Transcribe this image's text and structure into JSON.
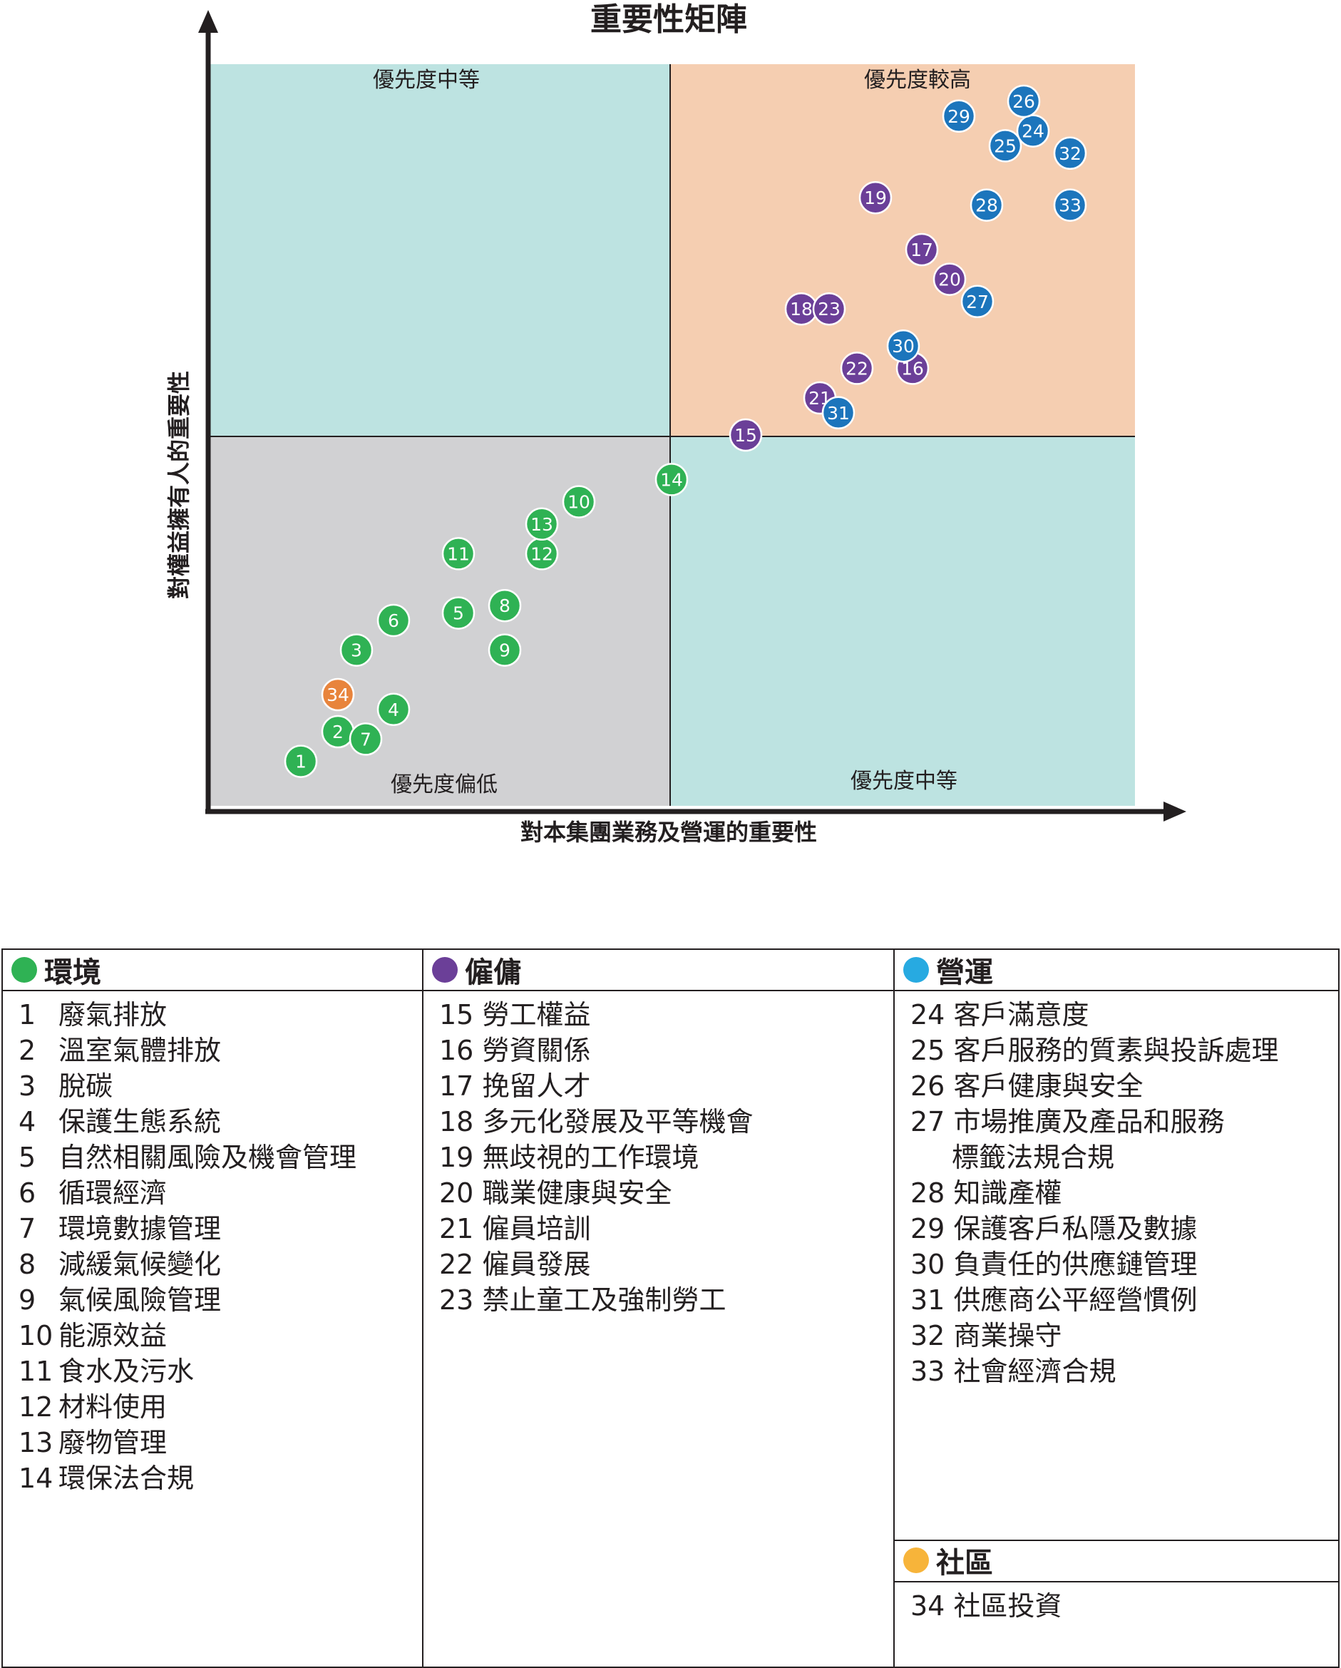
{
  "chart_data": {
    "type": "scatter",
    "title": "重要性矩陣",
    "xlabel": "對本集團業務及營運的重要性",
    "ylabel": "對權益擁有人的重要性",
    "xlim": [
      0,
      100
    ],
    "ylim": [
      0,
      100
    ],
    "quadrants": {
      "top_left": {
        "label": "優先度中等",
        "color": "#bde3e1"
      },
      "top_right": {
        "label": "優先度較高",
        "color": "#f5ceb1"
      },
      "bottom_left": {
        "label": "優先度偏低",
        "color": "#d1d1d3"
      },
      "bottom_right": {
        "label": "優先度中等",
        "color": "#bde3e1"
      }
    },
    "colors": {
      "環境": "#2fb254",
      "僱傭": "#6b3f98",
      "營運": "#1c75bc",
      "社區": "#e8843c"
    },
    "points": [
      {
        "id": "1",
        "category": "環境",
        "x": 10,
        "y": 6
      },
      {
        "id": "2",
        "category": "環境",
        "x": 14,
        "y": 10
      },
      {
        "id": "3",
        "category": "環境",
        "x": 16,
        "y": 21
      },
      {
        "id": "4",
        "category": "環境",
        "x": 20,
        "y": 13
      },
      {
        "id": "5",
        "category": "環境",
        "x": 27,
        "y": 26
      },
      {
        "id": "6",
        "category": "環境",
        "x": 20,
        "y": 25
      },
      {
        "id": "7",
        "category": "環境",
        "x": 17,
        "y": 9
      },
      {
        "id": "8",
        "category": "環境",
        "x": 32,
        "y": 27
      },
      {
        "id": "9",
        "category": "環境",
        "x": 32,
        "y": 21
      },
      {
        "id": "10",
        "category": "環境",
        "x": 40,
        "y": 41
      },
      {
        "id": "11",
        "category": "環境",
        "x": 27,
        "y": 34
      },
      {
        "id": "12",
        "category": "環境",
        "x": 36,
        "y": 34
      },
      {
        "id": "13",
        "category": "環境",
        "x": 36,
        "y": 38
      },
      {
        "id": "14",
        "category": "環境",
        "x": 50,
        "y": 44
      },
      {
        "id": "15",
        "category": "僱傭",
        "x": 58,
        "y": 50
      },
      {
        "id": "16",
        "category": "僱傭",
        "x": 76,
        "y": 59
      },
      {
        "id": "17",
        "category": "僱傭",
        "x": 77,
        "y": 75
      },
      {
        "id": "18",
        "category": "僱傭",
        "x": 64,
        "y": 67
      },
      {
        "id": "19",
        "category": "僱傭",
        "x": 72,
        "y": 82
      },
      {
        "id": "20",
        "category": "僱傭",
        "x": 80,
        "y": 71
      },
      {
        "id": "21",
        "category": "僱傭",
        "x": 66,
        "y": 55
      },
      {
        "id": "22",
        "category": "僱傭",
        "x": 70,
        "y": 59
      },
      {
        "id": "23",
        "category": "僱傭",
        "x": 67,
        "y": 67
      },
      {
        "id": "24",
        "category": "營運",
        "x": 89,
        "y": 91
      },
      {
        "id": "25",
        "category": "營運",
        "x": 86,
        "y": 89
      },
      {
        "id": "26",
        "category": "營運",
        "x": 88,
        "y": 95
      },
      {
        "id": "27",
        "category": "營運",
        "x": 83,
        "y": 68
      },
      {
        "id": "28",
        "category": "營運",
        "x": 84,
        "y": 81
      },
      {
        "id": "29",
        "category": "營運",
        "x": 81,
        "y": 93
      },
      {
        "id": "30",
        "category": "營運",
        "x": 75,
        "y": 62
      },
      {
        "id": "31",
        "category": "營運",
        "x": 68,
        "y": 53
      },
      {
        "id": "32",
        "category": "營運",
        "x": 93,
        "y": 88
      },
      {
        "id": "33",
        "category": "營運",
        "x": 93,
        "y": 81
      },
      {
        "id": "34",
        "category": "社區",
        "x": 14,
        "y": 15
      }
    ]
  },
  "legend": {
    "environment": {
      "title": "環境",
      "color": "#2fb254",
      "items": [
        {
          "num": "1",
          "text": "廢氣排放"
        },
        {
          "num": "2",
          "text": "溫室氣體排放"
        },
        {
          "num": "3",
          "text": "脫碳"
        },
        {
          "num": "4",
          "text": "保護生態系統"
        },
        {
          "num": "5",
          "text": "自然相關風險及機會管理"
        },
        {
          "num": "6",
          "text": "循環經濟"
        },
        {
          "num": "7",
          "text": "環境數據管理"
        },
        {
          "num": "8",
          "text": "減緩氣候變化"
        },
        {
          "num": "9",
          "text": "氣候風險管理"
        },
        {
          "num": "10",
          "text": "能源效益"
        },
        {
          "num": "11",
          "text": "食水及污水"
        },
        {
          "num": "12",
          "text": "材料使用"
        },
        {
          "num": "13",
          "text": "廢物管理"
        },
        {
          "num": "14",
          "text": "環保法合規"
        }
      ]
    },
    "employment": {
      "title": "僱傭",
      "color": "#6b3f98",
      "items": [
        {
          "num": "15",
          "text": "勞工權益"
        },
        {
          "num": "16",
          "text": "勞資關係"
        },
        {
          "num": "17",
          "text": "挽留人才"
        },
        {
          "num": "18",
          "text": "多元化發展及平等機會"
        },
        {
          "num": "19",
          "text": "無歧視的工作環境"
        },
        {
          "num": "20",
          "text": "職業健康與安全"
        },
        {
          "num": "21",
          "text": "僱員培訓"
        },
        {
          "num": "22",
          "text": "僱員發展"
        },
        {
          "num": "23",
          "text": "禁止童工及強制勞工"
        }
      ]
    },
    "operations": {
      "title": "營運",
      "color": "#27aae1",
      "items": [
        {
          "num": "24",
          "text": "客戶滿意度"
        },
        {
          "num": "25",
          "text": "客戶服務的質素與投訴處理"
        },
        {
          "num": "26",
          "text": "客戶健康與安全"
        },
        {
          "num": "27",
          "text": "市場推廣及產品和服務"
        },
        {
          "num": "",
          "text": "標籤法規合規"
        },
        {
          "num": "28",
          "text": "知識產權"
        },
        {
          "num": "29",
          "text": "保護客戶私隱及數據"
        },
        {
          "num": "30",
          "text": "負責任的供應鏈管理"
        },
        {
          "num": "31",
          "text": "供應商公平經營慣例"
        },
        {
          "num": "32",
          "text": "商業操守"
        },
        {
          "num": "33",
          "text": "社會經濟合規"
        }
      ]
    },
    "community": {
      "title": "社區",
      "color": "#f7b43a",
      "items": [
        {
          "num": "34",
          "text": "社區投資"
        }
      ]
    }
  }
}
